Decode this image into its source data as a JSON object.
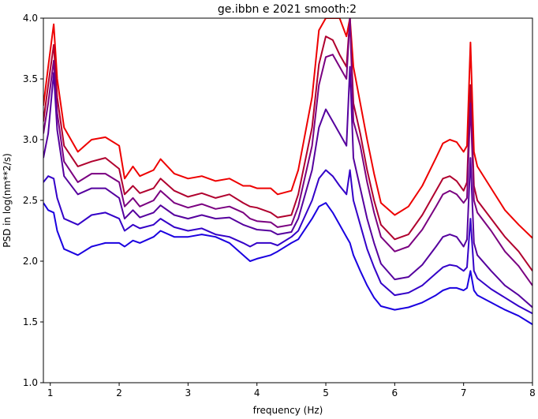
{
  "chart_data": {
    "type": "line",
    "title": "ge.ibbn e 2021 smooth:2",
    "xlabel": "frequency (Hz)",
    "ylabel": "PSD in log(nm**2/s)",
    "xlim": [
      0.9,
      8.0
    ],
    "ylim": [
      1.0,
      4.0
    ],
    "xticks": [
      1,
      2,
      3,
      4,
      5,
      6,
      7,
      8
    ],
    "yticks": [
      1.0,
      1.5,
      2.0,
      2.5,
      3.0,
      3.5,
      4.0
    ],
    "xtick_labels": [
      "1",
      "2",
      "3",
      "4",
      "5",
      "6",
      "7",
      "8"
    ],
    "ytick_labels": [
      "1.0",
      "1.5",
      "2.0",
      "2.5",
      "3.0",
      "3.5",
      "4.0"
    ],
    "grid": false,
    "legend": "none",
    "series": [
      {
        "color": "#ee0000",
        "x": [
          0.9,
          0.97,
          1.05,
          1.1,
          1.2,
          1.4,
          1.6,
          1.8,
          2.0,
          2.08,
          2.2,
          2.3,
          2.5,
          2.6,
          2.8,
          3.0,
          3.2,
          3.4,
          3.6,
          3.8,
          3.9,
          4.0,
          4.2,
          4.3,
          4.5,
          4.6,
          4.8,
          4.9,
          5.0,
          5.1,
          5.2,
          5.3,
          5.35,
          5.4,
          5.5,
          5.6,
          5.7,
          5.8,
          6.0,
          6.2,
          6.4,
          6.6,
          6.7,
          6.8,
          6.9,
          7.0,
          7.05,
          7.1,
          7.15,
          7.2,
          7.4,
          7.6,
          7.8,
          8.0
        ],
        "y": [
          3.28,
          3.6,
          3.95,
          3.5,
          3.1,
          2.9,
          3.0,
          3.02,
          2.95,
          2.68,
          2.78,
          2.7,
          2.75,
          2.84,
          2.72,
          2.68,
          2.7,
          2.66,
          2.68,
          2.62,
          2.62,
          2.6,
          2.6,
          2.55,
          2.58,
          2.75,
          3.35,
          3.9,
          4.0,
          4.0,
          4.0,
          3.85,
          4.0,
          3.6,
          3.3,
          3.0,
          2.72,
          2.48,
          2.38,
          2.45,
          2.62,
          2.85,
          2.97,
          3.0,
          2.98,
          2.9,
          2.95,
          3.8,
          2.9,
          2.78,
          2.6,
          2.42,
          2.3,
          2.19
        ]
      },
      {
        "color": "#b0002e",
        "x": [
          0.9,
          0.97,
          1.05,
          1.1,
          1.2,
          1.4,
          1.6,
          1.8,
          2.0,
          2.08,
          2.2,
          2.3,
          2.5,
          2.6,
          2.8,
          3.0,
          3.2,
          3.4,
          3.6,
          3.8,
          3.9,
          4.0,
          4.2,
          4.3,
          4.5,
          4.6,
          4.8,
          4.9,
          5.0,
          5.1,
          5.2,
          5.3,
          5.35,
          5.4,
          5.5,
          5.6,
          5.7,
          5.8,
          6.0,
          6.2,
          6.4,
          6.6,
          6.7,
          6.8,
          6.9,
          7.0,
          7.05,
          7.1,
          7.15,
          7.2,
          7.4,
          7.6,
          7.8,
          8.0
        ],
        "y": [
          3.15,
          3.45,
          3.78,
          3.35,
          2.95,
          2.78,
          2.82,
          2.85,
          2.76,
          2.55,
          2.62,
          2.56,
          2.6,
          2.68,
          2.58,
          2.53,
          2.56,
          2.52,
          2.55,
          2.48,
          2.45,
          2.44,
          2.4,
          2.36,
          2.38,
          2.55,
          3.1,
          3.62,
          3.85,
          3.82,
          3.7,
          3.6,
          4.0,
          3.3,
          3.05,
          2.75,
          2.5,
          2.3,
          2.18,
          2.22,
          2.38,
          2.58,
          2.68,
          2.7,
          2.66,
          2.58,
          2.65,
          3.45,
          2.62,
          2.5,
          2.35,
          2.2,
          2.08,
          1.92
        ]
      },
      {
        "color": "#7a0080",
        "x": [
          0.9,
          0.97,
          1.05,
          1.1,
          1.2,
          1.4,
          1.6,
          1.8,
          2.0,
          2.08,
          2.2,
          2.3,
          2.5,
          2.6,
          2.8,
          3.0,
          3.2,
          3.4,
          3.6,
          3.8,
          3.9,
          4.0,
          4.2,
          4.3,
          4.5,
          4.6,
          4.8,
          4.9,
          5.0,
          5.1,
          5.2,
          5.3,
          5.35,
          5.4,
          5.5,
          5.6,
          5.7,
          5.8,
          6.0,
          6.2,
          6.4,
          6.6,
          6.7,
          6.8,
          6.9,
          7.0,
          7.05,
          7.1,
          7.15,
          7.2,
          7.4,
          7.6,
          7.8,
          8.0
        ],
        "y": [
          3.05,
          3.3,
          3.65,
          3.22,
          2.82,
          2.65,
          2.72,
          2.72,
          2.65,
          2.45,
          2.52,
          2.45,
          2.5,
          2.58,
          2.48,
          2.44,
          2.47,
          2.43,
          2.45,
          2.4,
          2.35,
          2.33,
          2.32,
          2.28,
          2.3,
          2.45,
          2.95,
          3.45,
          3.68,
          3.7,
          3.6,
          3.5,
          4.0,
          3.15,
          2.95,
          2.65,
          2.4,
          2.2,
          2.08,
          2.12,
          2.26,
          2.45,
          2.55,
          2.58,
          2.55,
          2.48,
          2.52,
          3.3,
          2.5,
          2.4,
          2.25,
          2.08,
          1.96,
          1.8
        ]
      },
      {
        "color": "#55009e",
        "x": [
          0.9,
          0.97,
          1.05,
          1.1,
          1.2,
          1.4,
          1.6,
          1.8,
          2.0,
          2.08,
          2.2,
          2.3,
          2.5,
          2.6,
          2.8,
          3.0,
          3.2,
          3.4,
          3.6,
          3.8,
          3.9,
          4.0,
          4.2,
          4.3,
          4.5,
          4.6,
          4.8,
          4.9,
          5.0,
          5.1,
          5.2,
          5.3,
          5.35,
          5.4,
          5.5,
          5.6,
          5.7,
          5.8,
          6.0,
          6.2,
          6.4,
          6.6,
          6.7,
          6.8,
          6.9,
          7.0,
          7.05,
          7.1,
          7.15,
          7.2,
          7.4,
          7.6,
          7.8,
          8.0
        ],
        "y": [
          2.85,
          3.05,
          3.55,
          3.08,
          2.7,
          2.55,
          2.6,
          2.6,
          2.52,
          2.35,
          2.42,
          2.36,
          2.4,
          2.46,
          2.38,
          2.35,
          2.38,
          2.35,
          2.36,
          2.3,
          2.28,
          2.26,
          2.25,
          2.22,
          2.24,
          2.35,
          2.75,
          3.1,
          3.25,
          3.15,
          3.05,
          2.95,
          3.6,
          2.85,
          2.6,
          2.35,
          2.15,
          1.98,
          1.85,
          1.87,
          1.97,
          2.12,
          2.2,
          2.22,
          2.2,
          2.12,
          2.18,
          2.85,
          2.15,
          2.05,
          1.92,
          1.8,
          1.72,
          1.62
        ]
      },
      {
        "color": "#3300c8",
        "x": [
          0.9,
          0.97,
          1.05,
          1.1,
          1.2,
          1.4,
          1.6,
          1.8,
          2.0,
          2.08,
          2.2,
          2.3,
          2.5,
          2.6,
          2.8,
          3.0,
          3.2,
          3.4,
          3.6,
          3.8,
          3.9,
          4.0,
          4.2,
          4.3,
          4.5,
          4.6,
          4.8,
          4.9,
          5.0,
          5.1,
          5.2,
          5.3,
          5.35,
          5.4,
          5.5,
          5.6,
          5.7,
          5.8,
          6.0,
          6.2,
          6.4,
          6.6,
          6.7,
          6.8,
          6.9,
          7.0,
          7.05,
          7.1,
          7.15,
          7.2,
          7.4,
          7.6,
          7.8,
          8.0
        ],
        "y": [
          2.65,
          2.7,
          2.68,
          2.52,
          2.35,
          2.3,
          2.38,
          2.4,
          2.35,
          2.25,
          2.3,
          2.27,
          2.3,
          2.35,
          2.28,
          2.25,
          2.27,
          2.22,
          2.2,
          2.15,
          2.12,
          2.15,
          2.15,
          2.13,
          2.2,
          2.25,
          2.5,
          2.68,
          2.75,
          2.7,
          2.62,
          2.55,
          2.75,
          2.5,
          2.3,
          2.1,
          1.95,
          1.82,
          1.72,
          1.74,
          1.8,
          1.9,
          1.95,
          1.97,
          1.96,
          1.92,
          1.95,
          2.35,
          1.92,
          1.86,
          1.77,
          1.7,
          1.63,
          1.57
        ]
      },
      {
        "color": "#1a00e0",
        "x": [
          0.9,
          0.97,
          1.05,
          1.1,
          1.2,
          1.4,
          1.6,
          1.8,
          2.0,
          2.08,
          2.2,
          2.3,
          2.5,
          2.6,
          2.8,
          3.0,
          3.2,
          3.4,
          3.6,
          3.8,
          3.9,
          4.0,
          4.2,
          4.3,
          4.5,
          4.6,
          4.8,
          4.9,
          5.0,
          5.1,
          5.2,
          5.3,
          5.35,
          5.4,
          5.5,
          5.6,
          5.7,
          5.8,
          6.0,
          6.2,
          6.4,
          6.6,
          6.7,
          6.8,
          6.9,
          7.0,
          7.05,
          7.1,
          7.15,
          7.2,
          7.4,
          7.6,
          7.8,
          8.0
        ],
        "y": [
          2.48,
          2.42,
          2.4,
          2.25,
          2.1,
          2.05,
          2.12,
          2.15,
          2.15,
          2.12,
          2.17,
          2.15,
          2.2,
          2.25,
          2.2,
          2.2,
          2.22,
          2.2,
          2.15,
          2.05,
          2.0,
          2.02,
          2.05,
          2.08,
          2.15,
          2.18,
          2.35,
          2.45,
          2.48,
          2.4,
          2.3,
          2.2,
          2.15,
          2.05,
          1.92,
          1.8,
          1.7,
          1.63,
          1.6,
          1.62,
          1.66,
          1.72,
          1.76,
          1.78,
          1.78,
          1.76,
          1.78,
          1.92,
          1.76,
          1.72,
          1.66,
          1.6,
          1.55,
          1.48
        ]
      }
    ]
  }
}
